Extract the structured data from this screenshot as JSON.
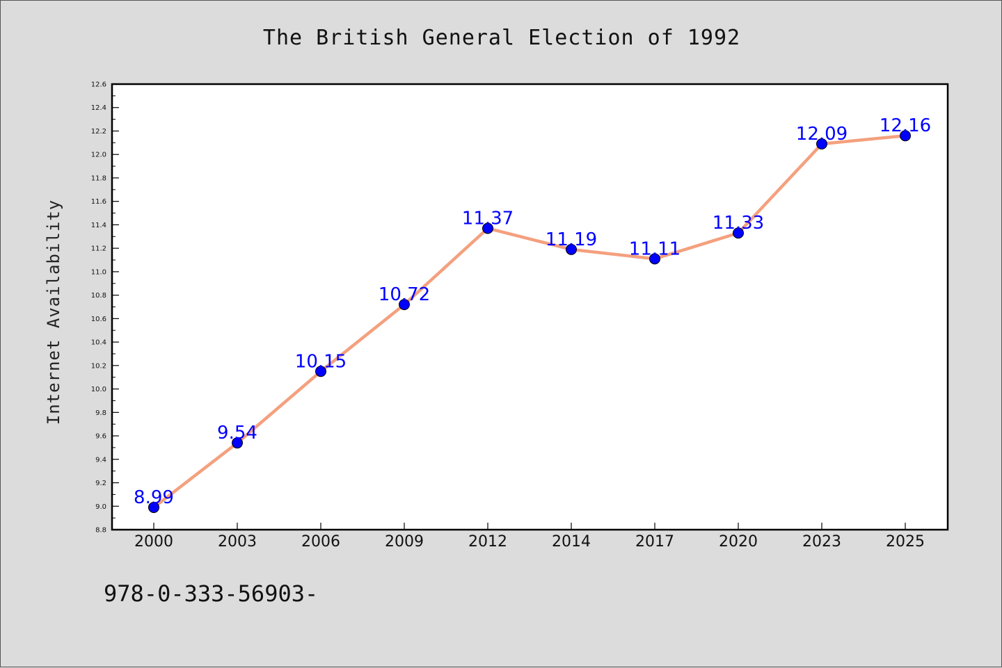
{
  "chart_data": {
    "type": "line",
    "title": "The British General Election of 1992",
    "xlabel": "",
    "ylabel": "Internet Availability",
    "categories": [
      "2000",
      "2003",
      "2006",
      "2009",
      "2012",
      "2014",
      "2017",
      "2020",
      "2023",
      "2025"
    ],
    "series": [
      {
        "values": [
          8.99,
          9.54,
          10.15,
          10.72,
          11.37,
          11.19,
          11.11,
          11.33,
          12.09,
          12.16
        ],
        "labels": [
          "8.99",
          "9.54",
          "10.15",
          "10.72",
          "11.37",
          "11.19",
          "11.11",
          "11.33",
          "12.09",
          "12.16"
        ],
        "line_color": "#f4a07e",
        "marker_color": "#0000ff"
      }
    ],
    "ylim": [
      8.8,
      12.6
    ],
    "yticks": [
      "8.8",
      "9.0",
      "9.2",
      "9.4",
      "9.6",
      "9.8",
      "10.0",
      "10.2",
      "10.4",
      "10.6",
      "10.8",
      "11.0",
      "11.2",
      "11.4",
      "11.6",
      "11.8",
      "12.0",
      "12.2",
      "12.4",
      "12.6"
    ],
    "grid": false,
    "legend": "none"
  },
  "footer": {
    "text": "978-0-333-56903-"
  },
  "colors": {
    "background": "#dcdcdc",
    "plot_background": "#ffffff",
    "data_label": "#0000ff"
  }
}
